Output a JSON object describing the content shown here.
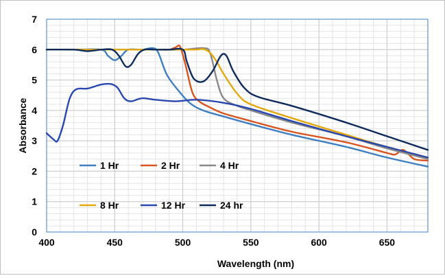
{
  "chart_data": {
    "type": "line",
    "title": "",
    "xlabel": "Wavelength (nm)",
    "ylabel": "Absorbance",
    "xlim": [
      400,
      680
    ],
    "ylim": [
      0,
      7
    ],
    "x_ticks": [
      400,
      450,
      500,
      550,
      600,
      650
    ],
    "y_ticks": [
      0,
      1,
      2,
      3,
      4,
      5,
      6,
      7
    ],
    "grid": true,
    "legend_placement": "bottom-left, inside plot",
    "series": [
      {
        "name": "1 Hr",
        "color": "#3E7FC1",
        "points": [
          [
            400,
            6.0
          ],
          [
            420,
            6.0
          ],
          [
            440,
            6.0
          ],
          [
            445,
            5.8
          ],
          [
            450,
            5.65
          ],
          [
            455,
            5.8
          ],
          [
            460,
            6.0
          ],
          [
            470,
            6.0
          ],
          [
            478,
            6.05
          ],
          [
            482,
            5.9
          ],
          [
            488,
            5.2
          ],
          [
            495,
            4.75
          ],
          [
            505,
            4.25
          ],
          [
            515,
            4.0
          ],
          [
            530,
            3.8
          ],
          [
            550,
            3.55
          ],
          [
            580,
            3.2
          ],
          [
            620,
            2.8
          ],
          [
            650,
            2.45
          ],
          [
            680,
            2.15
          ]
        ]
      },
      {
        "name": "2 Hr",
        "color": "#D9531E",
        "points": [
          [
            400,
            6.0
          ],
          [
            420,
            6.0
          ],
          [
            440,
            6.0
          ],
          [
            460,
            6.0
          ],
          [
            480,
            6.0
          ],
          [
            490,
            6.0
          ],
          [
            495,
            6.08
          ],
          [
            498,
            6.1
          ],
          [
            502,
            5.5
          ],
          [
            507,
            4.6
          ],
          [
            512,
            4.3
          ],
          [
            520,
            4.1
          ],
          [
            530,
            3.9
          ],
          [
            550,
            3.65
          ],
          [
            580,
            3.3
          ],
          [
            620,
            2.95
          ],
          [
            650,
            2.6
          ],
          [
            656,
            2.55
          ],
          [
            662,
            2.7
          ],
          [
            670,
            2.4
          ],
          [
            680,
            2.35
          ]
        ]
      },
      {
        "name": "4 Hr",
        "color": "#888888",
        "points": [
          [
            400,
            6.0
          ],
          [
            440,
            6.0
          ],
          [
            480,
            6.0
          ],
          [
            500,
            6.0
          ],
          [
            515,
            6.05
          ],
          [
            520,
            5.9
          ],
          [
            525,
            5.0
          ],
          [
            530,
            4.4
          ],
          [
            540,
            4.15
          ],
          [
            550,
            4.0
          ],
          [
            580,
            3.6
          ],
          [
            620,
            3.15
          ],
          [
            650,
            2.75
          ],
          [
            680,
            2.4
          ]
        ]
      },
      {
        "name": "8 Hr",
        "color": "#E2A80E",
        "points": [
          [
            400,
            6.0
          ],
          [
            440,
            6.0
          ],
          [
            480,
            6.0
          ],
          [
            500,
            6.0
          ],
          [
            510,
            6.0
          ],
          [
            515,
            6.02
          ],
          [
            520,
            5.9
          ],
          [
            525,
            5.6
          ],
          [
            530,
            5.2
          ],
          [
            540,
            4.55
          ],
          [
            550,
            4.2
          ],
          [
            580,
            3.75
          ],
          [
            620,
            3.2
          ],
          [
            650,
            2.8
          ],
          [
            680,
            2.45
          ]
        ]
      },
      {
        "name": "12 Hr",
        "color": "#2847B0",
        "points": [
          [
            400,
            3.25
          ],
          [
            405,
            3.05
          ],
          [
            408,
            3.0
          ],
          [
            412,
            3.5
          ],
          [
            417,
            4.4
          ],
          [
            422,
            4.7
          ],
          [
            430,
            4.72
          ],
          [
            440,
            4.85
          ],
          [
            447,
            4.87
          ],
          [
            452,
            4.75
          ],
          [
            457,
            4.4
          ],
          [
            462,
            4.3
          ],
          [
            470,
            4.4
          ],
          [
            480,
            4.35
          ],
          [
            495,
            4.3
          ],
          [
            510,
            4.35
          ],
          [
            530,
            4.25
          ],
          [
            550,
            4.05
          ],
          [
            580,
            3.65
          ],
          [
            620,
            3.15
          ],
          [
            650,
            2.8
          ],
          [
            680,
            2.45
          ]
        ]
      },
      {
        "name": "24 hr",
        "color": "#0D2A5C",
        "points": [
          [
            400,
            6.0
          ],
          [
            420,
            6.0
          ],
          [
            430,
            5.95
          ],
          [
            440,
            6.0
          ],
          [
            448,
            6.0
          ],
          [
            453,
            5.8
          ],
          [
            458,
            5.45
          ],
          [
            462,
            5.5
          ],
          [
            467,
            5.85
          ],
          [
            472,
            6.0
          ],
          [
            480,
            6.0
          ],
          [
            490,
            6.0
          ],
          [
            500,
            6.0
          ],
          [
            503,
            5.6
          ],
          [
            508,
            5.05
          ],
          [
            515,
            4.95
          ],
          [
            522,
            5.3
          ],
          [
            528,
            5.8
          ],
          [
            532,
            5.8
          ],
          [
            537,
            5.3
          ],
          [
            545,
            4.75
          ],
          [
            555,
            4.45
          ],
          [
            580,
            4.15
          ],
          [
            620,
            3.6
          ],
          [
            650,
            3.15
          ],
          [
            680,
            2.7
          ]
        ]
      }
    ]
  }
}
